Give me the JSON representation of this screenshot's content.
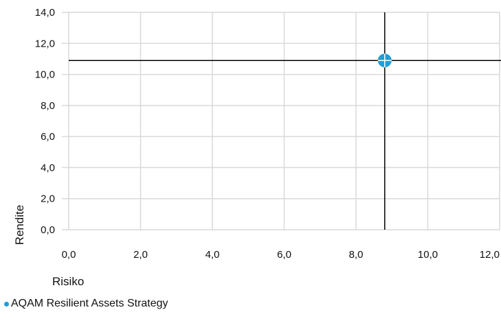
{
  "chart_data": {
    "type": "scatter",
    "xlabel": "Risiko",
    "ylabel": "Rendite",
    "xlim": [
      0,
      12
    ],
    "ylim": [
      0,
      14
    ],
    "x_ticks": [
      "0,0",
      "2,0",
      "4,0",
      "6,0",
      "8,0",
      "10,0",
      "12,0"
    ],
    "y_ticks": [
      "0,0",
      "2,0",
      "4,0",
      "6,0",
      "8,0",
      "10,0",
      "12,0",
      "14,0"
    ],
    "grid": true,
    "series": [
      {
        "name": "AQAM Resilient Assets Strategy",
        "x": [
          8.8
        ],
        "y": [
          10.9
        ]
      }
    ],
    "crosshair": {
      "x": 8.8,
      "y": 10.9
    },
    "legend_position": "bottom-left"
  },
  "colors": {
    "series": "#1E9FDB",
    "grid": "#d9d9d9",
    "crosshair": "#000000"
  }
}
